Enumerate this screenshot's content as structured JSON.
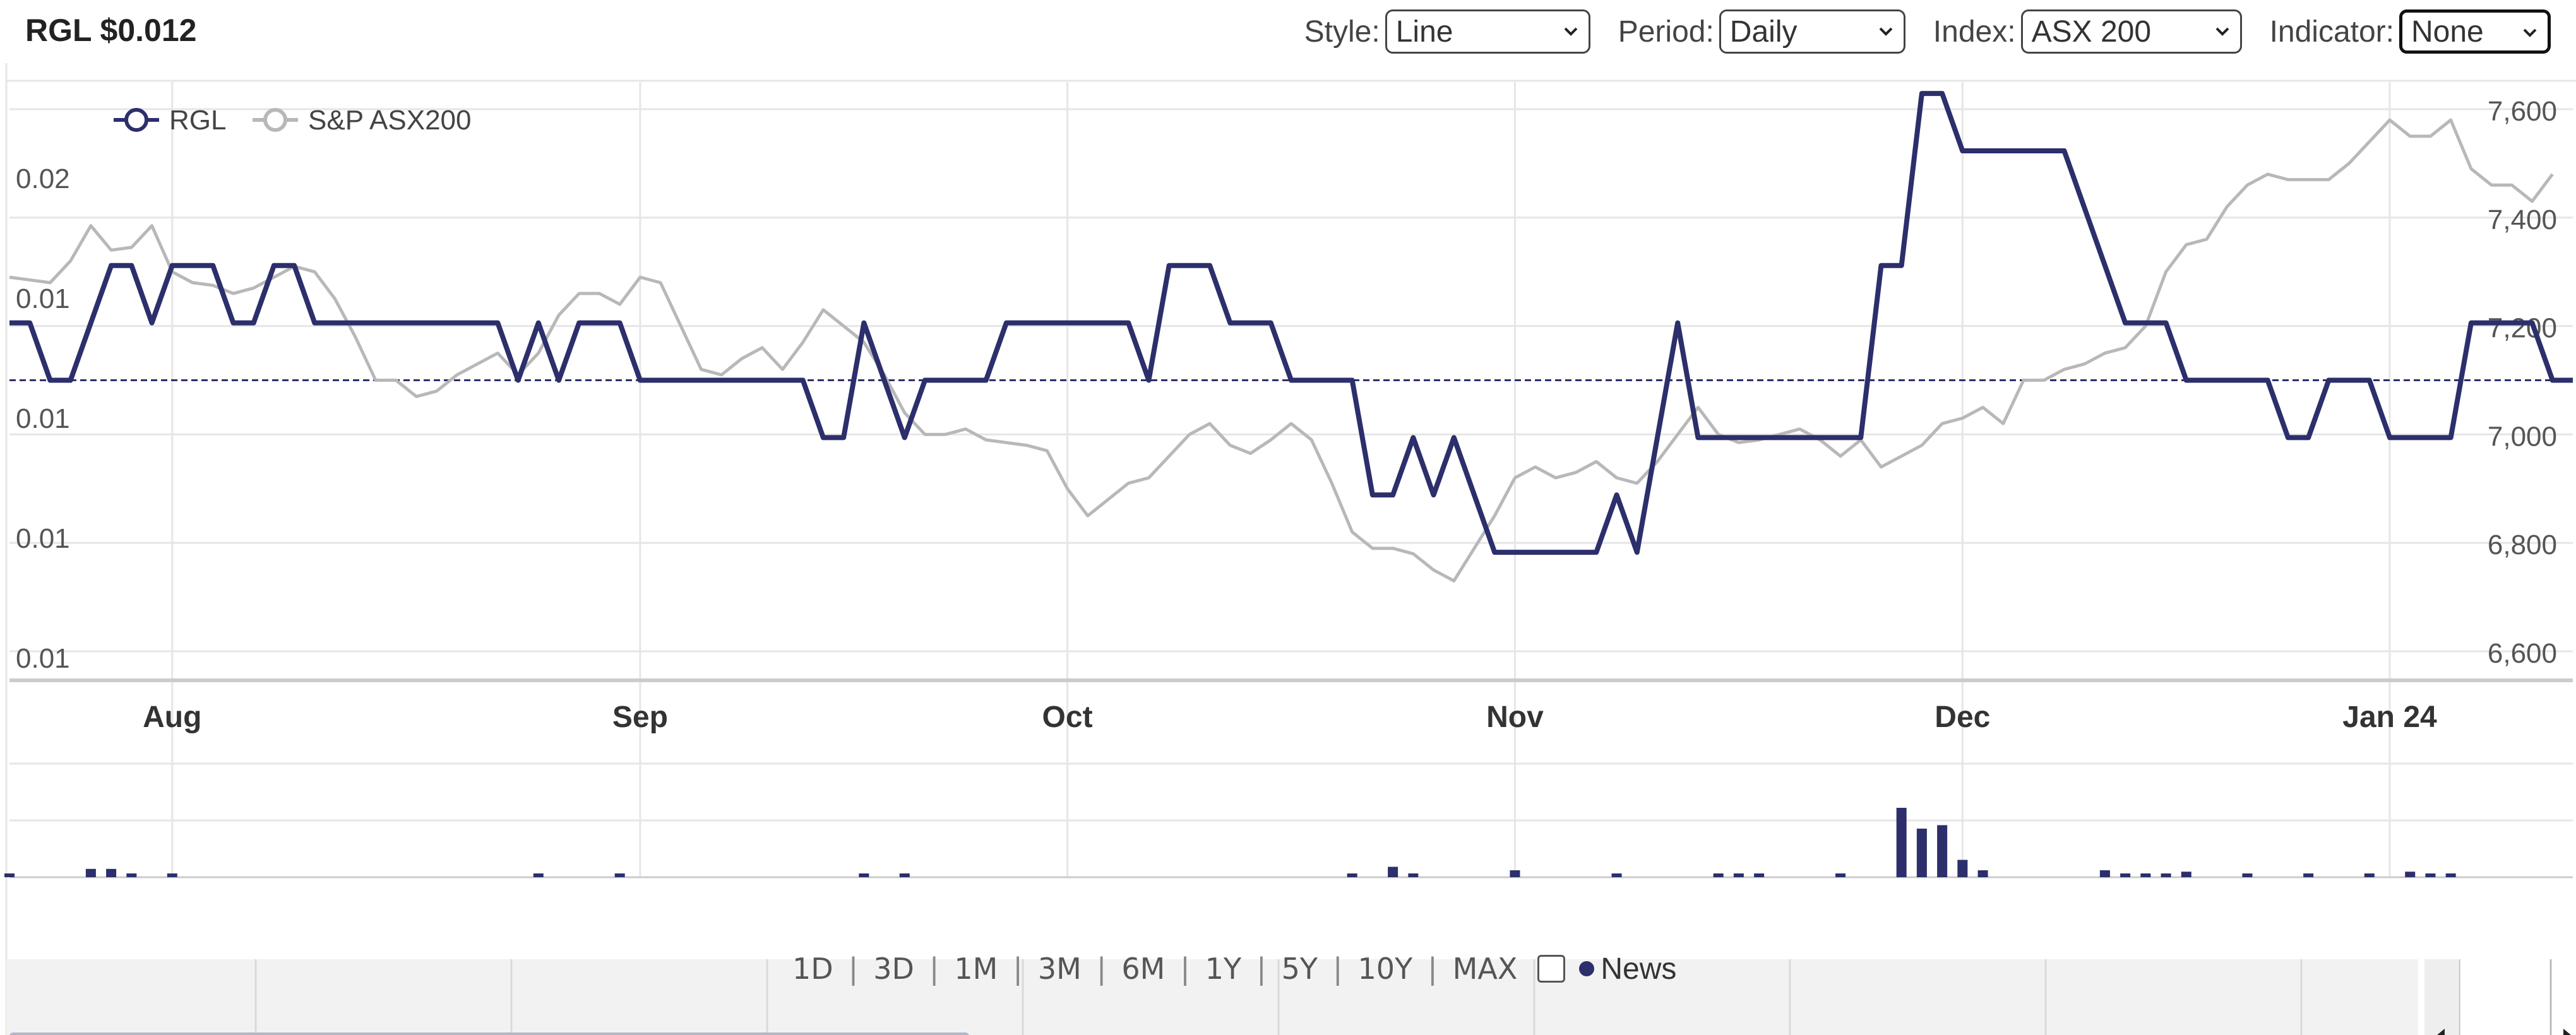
{
  "header": {
    "ticker": "RGL $0.012",
    "style_label": "Style:",
    "style_value": "Line",
    "period_label": "Period:",
    "period_value": "Daily",
    "index_label": "Index:",
    "index_value": "ASX 200",
    "indicator_label": "Indicator:",
    "indicator_value": "None"
  },
  "range_buttons": [
    "1D",
    "3D",
    "1M",
    "3M",
    "6M",
    "1Y",
    "5Y",
    "10Y",
    "MAX"
  ],
  "news_label": "News",
  "colors": {
    "rgl": "#2c2f6b",
    "asx": "#b8b8b8",
    "grid": "#e6e6e6",
    "navigator": "#f2f2f2",
    "scrollbar": "#b4b7c9"
  },
  "chart_data": {
    "type": "line",
    "legend": [
      "RGL",
      "S&P ASX200"
    ],
    "legend_position": "top-left",
    "x_labels": [
      "Aug",
      "Sep",
      "Oct",
      "Nov",
      "Dec",
      "Jan 24"
    ],
    "left_axis_ticks": [
      "0.02",
      "0.01",
      "0.01",
      "0.01",
      "0.01"
    ],
    "right_axis_ticks": [
      "7,600",
      "7,400",
      "7,200",
      "7,000",
      "6,800",
      "6,600"
    ],
    "right_axis_values": [
      7600,
      7400,
      7200,
      7000,
      6800,
      6600
    ],
    "right_ylim": [
      6550,
      7650
    ],
    "left_ylim": [
      0.0094,
      0.0146
    ],
    "current_price_line": 0.012,
    "series": [
      {
        "name": "RGL",
        "values": [
          0.0125,
          0.0125,
          0.012,
          0.012,
          0.0125,
          0.013,
          0.013,
          0.0125,
          0.013,
          0.013,
          0.013,
          0.0125,
          0.0125,
          0.013,
          0.013,
          0.0125,
          0.0125,
          0.0125,
          0.0125,
          0.0125,
          0.0125,
          0.0125,
          0.0125,
          0.0125,
          0.0125,
          0.012,
          0.0125,
          0.012,
          0.0125,
          0.0125,
          0.0125,
          0.012,
          0.012,
          0.012,
          0.012,
          0.012,
          0.012,
          0.012,
          0.012,
          0.012,
          0.0115,
          0.0115,
          0.0125,
          0.012,
          0.0115,
          0.012,
          0.012,
          0.012,
          0.012,
          0.0125,
          0.0125,
          0.0125,
          0.0125,
          0.0125,
          0.0125,
          0.0125,
          0.012,
          0.013,
          0.013,
          0.013,
          0.0125,
          0.0125,
          0.0125,
          0.012,
          0.012,
          0.012,
          0.012,
          0.011,
          0.011,
          0.0115,
          0.011,
          0.0115,
          0.011,
          0.0105,
          0.0105,
          0.0105,
          0.0105,
          0.0105,
          0.0105,
          0.011,
          0.0105,
          0.0115,
          0.0125,
          0.0115,
          0.0115,
          0.0115,
          0.0115,
          0.0115,
          0.0115,
          0.0115,
          0.0115,
          0.0115,
          0.013,
          0.013,
          0.0145,
          0.0145,
          0.014,
          0.014,
          0.014,
          0.014,
          0.014,
          0.014,
          0.0135,
          0.013,
          0.0125,
          0.0125,
          0.0125,
          0.012,
          0.012,
          0.012,
          0.012,
          0.012,
          0.0115,
          0.0115,
          0.012,
          0.012,
          0.012,
          0.0115,
          0.0115,
          0.0115,
          0.0115,
          0.0125,
          0.0125,
          0.0125,
          0.0125,
          0.012,
          0.012
        ]
      },
      {
        "name": "S&P ASX200",
        "values": [
          7290,
          7285,
          7280,
          7320,
          7385,
          7340,
          7345,
          7385,
          7300,
          7280,
          7275,
          7260,
          7270,
          7290,
          7310,
          7300,
          7250,
          7180,
          7100,
          7100,
          7070,
          7080,
          7110,
          7130,
          7150,
          7110,
          7150,
          7220,
          7260,
          7260,
          7240,
          7290,
          7280,
          7200,
          7120,
          7110,
          7140,
          7160,
          7120,
          7170,
          7230,
          7200,
          7170,
          7110,
          7040,
          7000,
          7000,
          7010,
          6990,
          6985,
          6980,
          6970,
          6900,
          6850,
          6880,
          6910,
          6920,
          6960,
          7000,
          7020,
          6980,
          6965,
          6990,
          7020,
          6990,
          6910,
          6820,
          6790,
          6790,
          6780,
          6750,
          6730,
          6790,
          6850,
          6920,
          6940,
          6920,
          6930,
          6950,
          6920,
          6910,
          6950,
          7000,
          7050,
          7000,
          6985,
          6990,
          7000,
          7010,
          6990,
          6960,
          6990,
          6940,
          6960,
          6980,
          7020,
          7030,
          7050,
          7020,
          7100,
          7100,
          7120,
          7130,
          7150,
          7160,
          7200,
          7300,
          7350,
          7360,
          7420,
          7460,
          7480,
          7470,
          7470,
          7470,
          7500,
          7540,
          7580,
          7550,
          7550,
          7580,
          7490,
          7460,
          7460,
          7430,
          7480
        ]
      }
    ],
    "volume_relative": [
      0.05,
      0,
      0,
      0,
      0.12,
      0.12,
      0.05,
      0,
      0.05,
      0,
      0,
      0,
      0,
      0,
      0,
      0,
      0,
      0,
      0,
      0,
      0,
      0,
      0,
      0,
      0,
      0,
      0.05,
      0,
      0,
      0,
      0.05,
      0,
      0,
      0,
      0,
      0,
      0,
      0,
      0,
      0,
      0,
      0,
      0.05,
      0,
      0.05,
      0,
      0,
      0,
      0,
      0,
      0,
      0,
      0,
      0,
      0,
      0,
      0,
      0,
      0,
      0,
      0,
      0,
      0,
      0,
      0,
      0,
      0.05,
      0,
      0.15,
      0.05,
      0,
      0,
      0,
      0,
      0.1,
      0,
      0,
      0,
      0,
      0.05,
      0,
      0,
      0,
      0,
      0.05,
      0.05,
      0.05,
      0,
      0,
      0,
      0.05,
      0,
      0,
      1.0,
      0.7,
      0.75,
      0.25,
      0.1,
      0,
      0,
      0,
      0,
      0,
      0.1,
      0.05,
      0.05,
      0.05,
      0.08,
      0,
      0,
      0.05,
      0,
      0,
      0.05,
      0,
      0,
      0.05,
      0,
      0.08,
      0.05,
      0.05,
      0,
      0,
      0,
      0,
      0,
      0,
      0,
      0.05,
      0
    ]
  }
}
